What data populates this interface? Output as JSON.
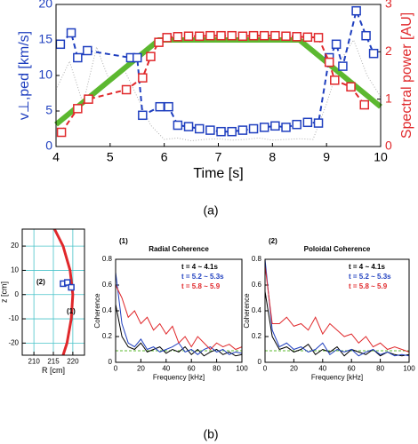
{
  "chart_data": [
    {
      "type": "line",
      "panel_label": "(a)",
      "xlabel": "Time [s]",
      "ylabel": "v⊥,ped [km/s]",
      "y2label": "Spectral power [AU]",
      "xlim": [
        4,
        10
      ],
      "xticks": [
        4,
        5,
        6,
        7,
        8,
        9,
        10
      ],
      "ylim": [
        0,
        20
      ],
      "yticks": [
        0,
        5,
        10,
        15,
        20
      ],
      "y2lim": [
        0,
        3
      ],
      "y2ticks": [
        0,
        1,
        2,
        3
      ],
      "ycolor": "#1f3fbf",
      "y2color": "#e0282b",
      "series": [
        {
          "color": "#b0b0b0",
          "style": "dotted",
          "linewidth": 1,
          "x": [
            4,
            4.25,
            4.5,
            4.75,
            5,
            5.25,
            5.5,
            5.75,
            6,
            6.25,
            6.5,
            6.75,
            7,
            7.25,
            7.5,
            7.75,
            8,
            8.25,
            8.5,
            8.75,
            9,
            9.25,
            9.5,
            9.75,
            10
          ],
          "values": [
            8,
            12,
            6,
            14,
            9,
            11,
            7,
            3,
            1,
            1.2,
            0.8,
            1,
            1.1,
            0.9,
            1,
            1.2,
            0.9,
            1,
            1.1,
            1,
            6,
            12,
            15,
            10,
            7
          ]
        },
        {
          "color": "#5cb830",
          "style": "solid",
          "linewidth": 6,
          "x": [
            4,
            5.9,
            8.5,
            10
          ],
          "values": [
            3.1,
            15,
            15,
            5.6
          ]
        },
        {
          "color": "#1f3fbf",
          "style": "dashed",
          "linewidth": 2,
          "marker": "square",
          "x": [
            4.08,
            4.28,
            4.4,
            4.58,
            5.38,
            5.5,
            5.6,
            5.92,
            6.08,
            6.25,
            6.45,
            6.65,
            6.85,
            7.05,
            7.25,
            7.45,
            7.65,
            7.85,
            8.05,
            8.25,
            8.45,
            8.65,
            8.85,
            9.05,
            9.18,
            9.3,
            9.55,
            9.73,
            9.87
          ],
          "values": [
            14.4,
            16,
            12.5,
            13.5,
            12.5,
            12.5,
            4.4,
            5.6,
            5.6,
            3,
            2.8,
            2.5,
            2.3,
            2.1,
            2.1,
            2.3,
            2.5,
            2.7,
            2.9,
            2.7,
            3.1,
            3.4,
            3.3,
            12.5,
            14.4,
            11.3,
            19.1,
            15.6,
            13.1
          ]
        },
        {
          "color": "#e0282b",
          "style": "dashed",
          "linewidth": 2,
          "marker": "square",
          "axis": "y2",
          "x": [
            4.1,
            4.4,
            4.6,
            5.3,
            5.6,
            5.75,
            5.9,
            6.05,
            6.25,
            6.45,
            6.65,
            6.85,
            7.05,
            7.25,
            7.45,
            7.65,
            7.85,
            8.05,
            8.25,
            8.45,
            8.65,
            8.85,
            9.05,
            9.15,
            9.45,
            9.7
          ],
          "values": [
            0.3,
            0.8,
            1.0,
            1.2,
            1.45,
            1.9,
            2.2,
            2.3,
            2.32,
            2.33,
            2.33,
            2.34,
            2.34,
            2.34,
            2.33,
            2.34,
            2.34,
            2.34,
            2.33,
            2.32,
            2.31,
            2.3,
            1.78,
            1.4,
            1.26,
            0.88
          ]
        }
      ]
    },
    {
      "type": "line",
      "panel_label": "(b)",
      "xlabel": "R [cm]",
      "ylabel": "z [cm]",
      "grid": true,
      "grid_color": "#49c3c9",
      "xlim": [
        207,
        223
      ],
      "xticks": [
        210,
        215,
        220
      ],
      "ylim": [
        -25,
        27
      ],
      "yticks": [
        -20,
        -10,
        0,
        10,
        20
      ],
      "annotations": [
        "(2)",
        "(1)"
      ],
      "series": [
        {
          "color": "#e0282b",
          "style": "solid",
          "linewidth": 3,
          "x": [
            215.3,
            217.5,
            219.3,
            220,
            219.6,
            218.5,
            217.5
          ],
          "values": [
            27,
            20,
            10,
            0,
            -10,
            -20,
            -25
          ]
        },
        {
          "color": "#1f3fbf",
          "style": "none",
          "linewidth": 1,
          "marker": "square",
          "x": [
            217.5,
            218.6,
            219.6
          ],
          "values": [
            4.5,
            5,
            3
          ]
        }
      ]
    },
    {
      "type": "line",
      "title": "Radial Coherence",
      "annotations": [
        "(1)"
      ],
      "xlabel": "Frequency [kHz]",
      "ylabel": "Coherence",
      "xlim": [
        0,
        100
      ],
      "xticks": [
        0,
        20,
        40,
        60,
        80,
        100
      ],
      "ylim": [
        0,
        0.8
      ],
      "yticks": [
        0,
        0.2,
        0.4,
        0.6,
        0.8
      ],
      "threshold": 0.09,
      "threshold_color": "#5cb830",
      "legend": "upper right",
      "x": [
        0,
        5,
        10,
        15,
        20,
        25,
        30,
        35,
        40,
        45,
        50,
        55,
        60,
        65,
        70,
        75,
        80,
        85,
        90,
        95,
        100
      ],
      "series": [
        {
          "name": "t = 4 ~ 4.1s",
          "color": "#000000",
          "style": "solid",
          "linewidth": 1,
          "values": [
            0.45,
            0.2,
            0.12,
            0.1,
            0.15,
            0.08,
            0.1,
            0.12,
            0.07,
            0.1,
            0.08,
            0.12,
            0.06,
            0.1,
            0.05,
            0.08,
            0.1,
            0.06,
            0.08,
            0.05,
            0.06
          ]
        },
        {
          "name": "t = 5.2 ~ 5.3s",
          "color": "#1f3fbf",
          "style": "solid",
          "linewidth": 1,
          "values": [
            0.7,
            0.3,
            0.15,
            0.12,
            0.18,
            0.1,
            0.12,
            0.08,
            0.1,
            0.12,
            0.15,
            0.08,
            0.1,
            0.06,
            0.1,
            0.12,
            0.08,
            0.1,
            0.06,
            0.08,
            0.07
          ]
        },
        {
          "name": "t = 5.8 ~ 5.9",
          "color": "#e0282b",
          "style": "solid",
          "linewidth": 1,
          "values": [
            0.6,
            0.5,
            0.35,
            0.4,
            0.3,
            0.35,
            0.25,
            0.3,
            0.22,
            0.28,
            0.15,
            0.2,
            0.12,
            0.2,
            0.15,
            0.1,
            0.15,
            0.12,
            0.14,
            0.1,
            0.12
          ]
        }
      ]
    },
    {
      "type": "line",
      "title": "Poloidal Coherence",
      "annotations": [
        "(2)"
      ],
      "xlabel": "Frequency [kHz]",
      "ylabel": "Coherence",
      "xlim": [
        0,
        100
      ],
      "xticks": [
        0,
        20,
        40,
        60,
        80,
        100
      ],
      "ylim": [
        0,
        0.8
      ],
      "yticks": [
        0,
        0.2,
        0.4,
        0.6,
        0.8
      ],
      "threshold": 0.09,
      "threshold_color": "#5cb830",
      "legend": "upper right",
      "x": [
        0,
        5,
        10,
        15,
        20,
        25,
        30,
        35,
        40,
        45,
        50,
        55,
        60,
        65,
        70,
        75,
        80,
        85,
        90,
        95,
        100
      ],
      "series": [
        {
          "name": "t = 4 ~ 4.1s",
          "color": "#000000",
          "style": "solid",
          "linewidth": 1,
          "values": [
            0.55,
            0.2,
            0.1,
            0.12,
            0.08,
            0.1,
            0.14,
            0.06,
            0.1,
            0.08,
            0.12,
            0.05,
            0.1,
            0.08,
            0.06,
            0.1,
            0.05,
            0.08,
            0.06,
            0.05,
            0.06
          ]
        },
        {
          "name": "t = 5.2 ~ 5.3s",
          "color": "#1f3fbf",
          "style": "solid",
          "linewidth": 1,
          "values": [
            0.8,
            0.25,
            0.12,
            0.15,
            0.1,
            0.12,
            0.08,
            0.1,
            0.15,
            0.06,
            0.1,
            0.08,
            0.1,
            0.05,
            0.08,
            0.1,
            0.06,
            0.08,
            0.05,
            0.06,
            0.05
          ]
        },
        {
          "name": "t = 5.8 ~ 5.9",
          "color": "#e0282b",
          "style": "solid",
          "linewidth": 1,
          "values": [
            0.75,
            0.3,
            0.3,
            0.35,
            0.28,
            0.3,
            0.25,
            0.35,
            0.22,
            0.3,
            0.25,
            0.2,
            0.22,
            0.15,
            0.2,
            0.12,
            0.15,
            0.1,
            0.12,
            0.1,
            0.08
          ]
        }
      ]
    }
  ]
}
